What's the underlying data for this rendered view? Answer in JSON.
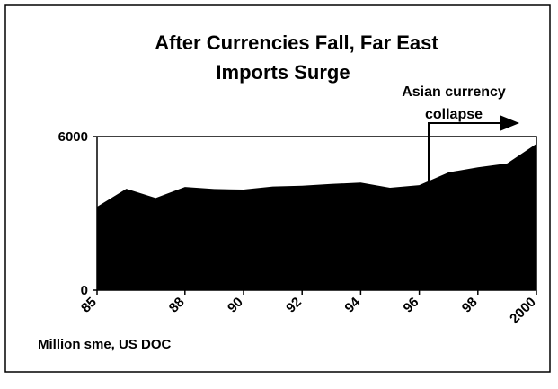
{
  "chart_data": {
    "type": "area",
    "title": [
      "After Currencies Fall, Far East",
      "Imports Surge"
    ],
    "annotation": [
      "Asian currency",
      "collapse"
    ],
    "source": "Million sme, US DOC",
    "x": [
      1985,
      1986,
      1987,
      1988,
      1989,
      1990,
      1991,
      1992,
      1993,
      1994,
      1995,
      1996,
      1997,
      1998,
      1999,
      2000
    ],
    "series": [
      {
        "name": "Imports",
        "color": "#000000",
        "values": [
          3260,
          3960,
          3600,
          4030,
          3950,
          3930,
          4050,
          4080,
          4150,
          4200,
          4000,
          4100,
          4600,
          4800,
          4950,
          5720
        ]
      }
    ],
    "xlim": [
      1985,
      2000
    ],
    "xticks": [
      {
        "value": 1985,
        "label": "85"
      },
      {
        "value": 1988,
        "label": "88"
      },
      {
        "value": 1990,
        "label": "90"
      },
      {
        "value": 1992,
        "label": "92"
      },
      {
        "value": 1994,
        "label": "94"
      },
      {
        "value": 1996,
        "label": "96"
      },
      {
        "value": 1998,
        "label": "98"
      },
      2000
    ],
    "ylim": [
      0,
      6000
    ],
    "yticks": [
      0,
      6000
    ]
  }
}
